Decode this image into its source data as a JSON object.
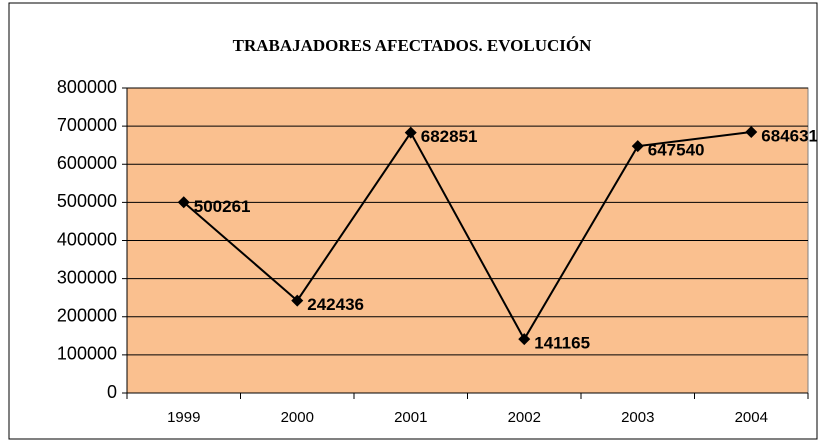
{
  "chart_data": {
    "type": "line",
    "title": "TRABAJADORES AFECTADOS. EVOLUCIÓN",
    "categories": [
      "1999",
      "2000",
      "2001",
      "2002",
      "2003",
      "2004"
    ],
    "values": [
      500261,
      242436,
      682851,
      141165,
      647540,
      684631
    ],
    "color": "#000000",
    "plot_background": "#fac08f",
    "ylim": [
      0,
      800000
    ],
    "yticks": [
      0,
      100000,
      200000,
      300000,
      400000,
      500000,
      600000,
      700000,
      800000
    ],
    "grid": true
  }
}
